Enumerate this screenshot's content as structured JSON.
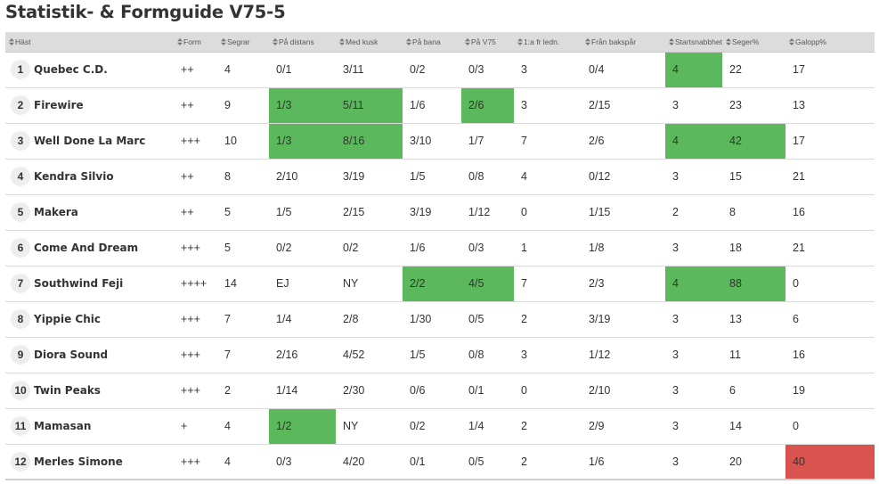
{
  "title": "Statistik- & Formguide V75-5",
  "colors": {
    "green": "#5cb85c",
    "red": "#d9534f",
    "header_bg": "#dcdcdc"
  },
  "headers": [
    "Häst",
    "Form",
    "Segrar",
    "På distans",
    "Med kusk",
    "På bana",
    "På V75",
    "1:a fr ledn.",
    "Från bakspår",
    "Startsnabbhet",
    "Seger%",
    "Galopp%"
  ],
  "rows": [
    {
      "nr": "1",
      "name": "Quebec C.D.",
      "cells": [
        "++",
        "4",
        "0/1",
        "3/11",
        "0/2",
        "0/3",
        "3",
        "0/4",
        "4",
        "22",
        "17"
      ],
      "hl": {
        "8": "green"
      }
    },
    {
      "nr": "2",
      "name": "Firewire",
      "cells": [
        "++",
        "9",
        "1/3",
        "5/11",
        "1/6",
        "2/6",
        "3",
        "2/15",
        "3",
        "23",
        "13"
      ],
      "hl": {
        "2": "green",
        "3": "green",
        "5": "green"
      }
    },
    {
      "nr": "3",
      "name": "Well Done La Marc",
      "cells": [
        "+++",
        "10",
        "1/3",
        "8/16",
        "3/10",
        "1/7",
        "7",
        "2/6",
        "4",
        "42",
        "17"
      ],
      "hl": {
        "2": "green",
        "3": "green",
        "8": "green",
        "9": "green"
      }
    },
    {
      "nr": "4",
      "name": "Kendra Silvio",
      "cells": [
        "++",
        "8",
        "2/10",
        "3/19",
        "1/5",
        "0/8",
        "4",
        "0/12",
        "3",
        "15",
        "21"
      ],
      "hl": {}
    },
    {
      "nr": "5",
      "name": "Makera",
      "cells": [
        "++",
        "5",
        "1/5",
        "2/15",
        "3/19",
        "1/12",
        "0",
        "1/15",
        "2",
        "8",
        "16"
      ],
      "hl": {}
    },
    {
      "nr": "6",
      "name": "Come And Dream",
      "cells": [
        "+++",
        "5",
        "0/2",
        "0/2",
        "1/6",
        "0/3",
        "1",
        "1/8",
        "3",
        "18",
        "21"
      ],
      "hl": {}
    },
    {
      "nr": "7",
      "name": "Southwind Feji",
      "cells": [
        "++++",
        "14",
        "EJ",
        "NY",
        "2/2",
        "4/5",
        "7",
        "2/3",
        "4",
        "88",
        "0"
      ],
      "hl": {
        "4": "green",
        "5": "green",
        "8": "green",
        "9": "green"
      }
    },
    {
      "nr": "8",
      "name": "Yippie Chic",
      "cells": [
        "+++",
        "7",
        "1/4",
        "2/8",
        "1/30",
        "0/5",
        "2",
        "3/19",
        "3",
        "13",
        "6"
      ],
      "hl": {}
    },
    {
      "nr": "9",
      "name": "Diora Sound",
      "cells": [
        "+++",
        "7",
        "2/16",
        "4/52",
        "1/5",
        "0/8",
        "3",
        "1/12",
        "3",
        "11",
        "16"
      ],
      "hl": {}
    },
    {
      "nr": "10",
      "name": "Twin Peaks",
      "cells": [
        "+++",
        "2",
        "1/14",
        "2/30",
        "0/6",
        "0/1",
        "0",
        "2/10",
        "3",
        "6",
        "19"
      ],
      "hl": {}
    },
    {
      "nr": "11",
      "name": "Mamasan",
      "cells": [
        "+",
        "4",
        "1/2",
        "NY",
        "0/2",
        "1/4",
        "2",
        "2/9",
        "3",
        "14",
        "0"
      ],
      "hl": {
        "2": "green"
      }
    },
    {
      "nr": "12",
      "name": "Merles Simone",
      "cells": [
        "+++",
        "4",
        "0/3",
        "4/20",
        "0/1",
        "0/5",
        "2",
        "1/6",
        "3",
        "20",
        "40"
      ],
      "hl": {
        "10": "red"
      }
    }
  ]
}
